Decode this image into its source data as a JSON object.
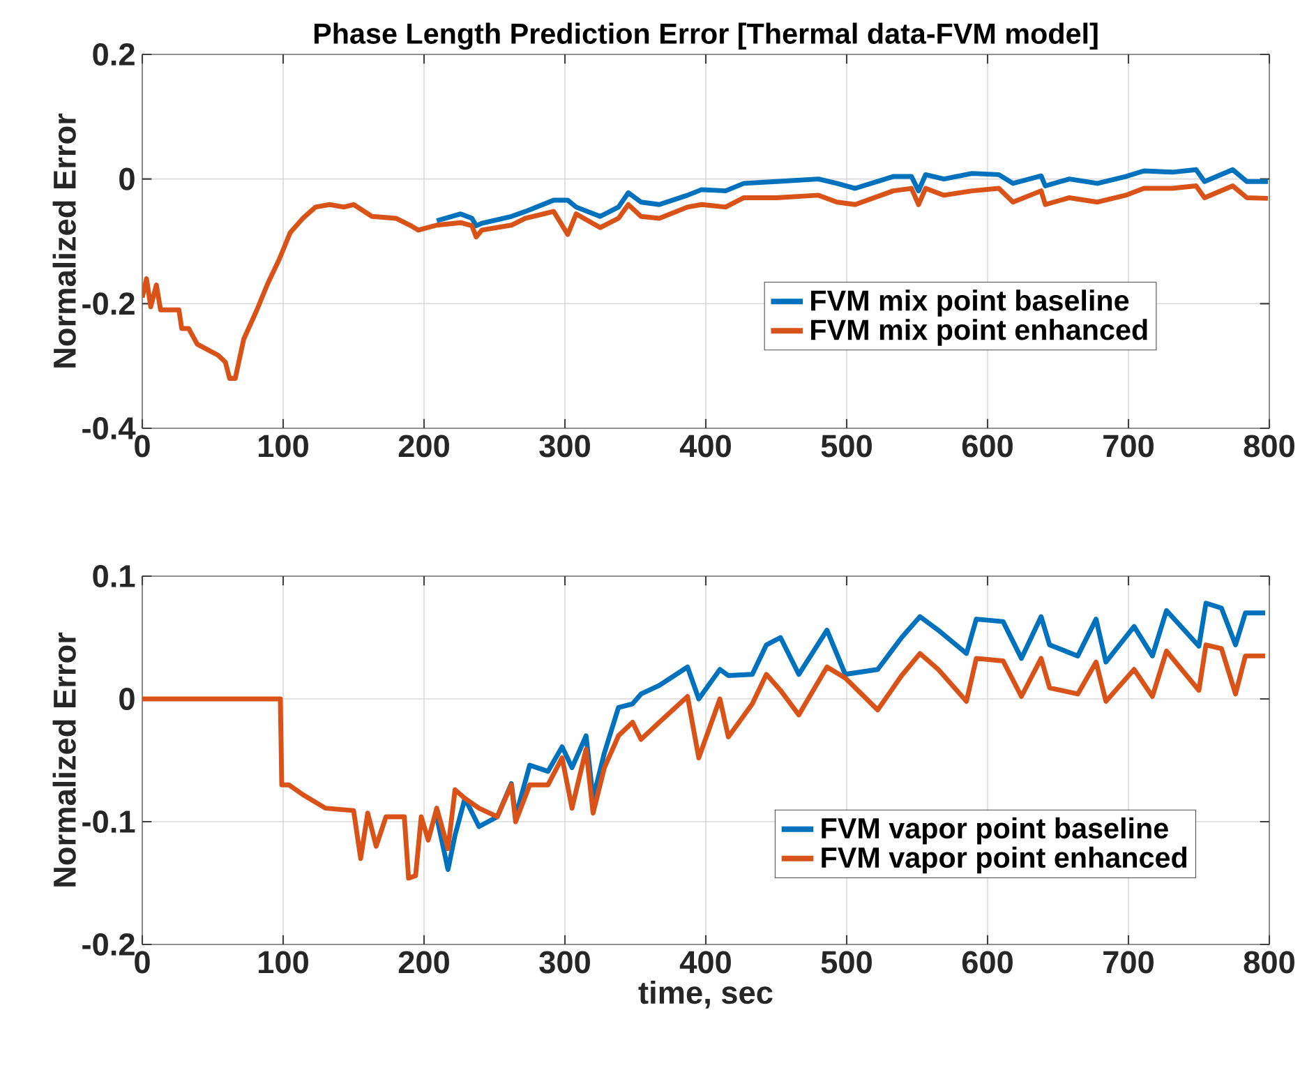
{
  "chart_data": [
    {
      "type": "line",
      "title": "Phase Length Prediction Error [Thermal data-FVM model]",
      "ylabel": "Normalized Error",
      "xlim": [
        0,
        800
      ],
      "ylim": [
        -0.4,
        0.2
      ],
      "xticks": [
        0,
        100,
        200,
        300,
        400,
        500,
        600,
        700,
        800
      ],
      "yticks": [
        -0.4,
        -0.2,
        0,
        0.2
      ],
      "grid": true,
      "legend": "right",
      "series": [
        {
          "name": "FVM mix point baseline",
          "color": "#0072bd",
          "x": [
            209,
            226,
            234,
            237,
            241,
            262,
            272,
            292,
            302,
            308,
            325,
            338,
            345,
            354,
            367,
            387,
            397,
            414,
            427,
            450,
            480,
            493,
            506,
            533,
            546,
            551,
            556,
            569,
            589,
            608,
            618,
            638,
            641,
            658,
            678,
            698,
            711,
            731,
            748,
            754,
            774,
            784,
            799
          ],
          "values": [
            -0.067,
            -0.056,
            -0.063,
            -0.075,
            -0.071,
            -0.06,
            -0.052,
            -0.034,
            -0.034,
            -0.045,
            -0.06,
            -0.045,
            -0.022,
            -0.037,
            -0.041,
            -0.026,
            -0.017,
            -0.019,
            -0.007,
            -0.004,
            0.0,
            -0.007,
            -0.015,
            0.004,
            0.004,
            -0.019,
            0.007,
            0.0,
            0.009,
            0.007,
            -0.007,
            0.005,
            -0.011,
            0.0,
            -0.007,
            0.004,
            0.013,
            0.011,
            0.015,
            -0.004,
            0.015,
            -0.004,
            -0.004
          ]
        },
        {
          "name": "FVM mix point enhanced",
          "color": "#d95319",
          "x": [
            0,
            3,
            6,
            10,
            13,
            26,
            28,
            33,
            39,
            54,
            59,
            62,
            66,
            72,
            81,
            89,
            97,
            105,
            114,
            123,
            133,
            143,
            150,
            163,
            180,
            190,
            196,
            209,
            226,
            234,
            237,
            241,
            262,
            272,
            292,
            302,
            308,
            325,
            338,
            345,
            354,
            367,
            387,
            397,
            414,
            427,
            450,
            480,
            493,
            506,
            533,
            546,
            551,
            556,
            569,
            589,
            608,
            618,
            638,
            641,
            658,
            678,
            698,
            711,
            731,
            748,
            754,
            774,
            784,
            799
          ],
          "values": [
            -0.19,
            -0.16,
            -0.205,
            -0.17,
            -0.21,
            -0.21,
            -0.24,
            -0.24,
            -0.265,
            -0.283,
            -0.294,
            -0.32,
            -0.32,
            -0.257,
            -0.212,
            -0.168,
            -0.13,
            -0.086,
            -0.063,
            -0.045,
            -0.041,
            -0.045,
            -0.041,
            -0.06,
            -0.063,
            -0.074,
            -0.082,
            -0.074,
            -0.07,
            -0.075,
            -0.093,
            -0.082,
            -0.074,
            -0.063,
            -0.052,
            -0.089,
            -0.056,
            -0.078,
            -0.063,
            -0.041,
            -0.06,
            -0.063,
            -0.045,
            -0.041,
            -0.045,
            -0.03,
            -0.03,
            -0.026,
            -0.037,
            -0.041,
            -0.019,
            -0.015,
            -0.041,
            -0.015,
            -0.026,
            -0.019,
            -0.015,
            -0.037,
            -0.019,
            -0.041,
            -0.03,
            -0.037,
            -0.026,
            -0.015,
            -0.015,
            -0.011,
            -0.03,
            -0.011,
            -0.03,
            -0.031
          ]
        }
      ]
    },
    {
      "type": "line",
      "xlabel": "time, sec",
      "ylabel": "Normalized Error",
      "xlim": [
        0,
        800
      ],
      "ylim": [
        -0.2,
        0.1
      ],
      "xticks": [
        0,
        100,
        200,
        300,
        400,
        500,
        600,
        700,
        800
      ],
      "yticks": [
        -0.2,
        -0.1,
        0,
        0.1
      ],
      "grid": true,
      "legend": "bottom right",
      "series": [
        {
          "name": "FVM vapor point baseline",
          "color": "#0072bd",
          "x": [
            209,
            217,
            222,
            229,
            239,
            252,
            262,
            265,
            275,
            288,
            298,
            305,
            315,
            320,
            328,
            338,
            348,
            354,
            367,
            387,
            395,
            410,
            416,
            433,
            443,
            453,
            466,
            486,
            499,
            522,
            539,
            552,
            565,
            585,
            592,
            611,
            624,
            638,
            644,
            664,
            677,
            684,
            704,
            717,
            727,
            750,
            755,
            766,
            776,
            783,
            797
          ],
          "values": [
            -0.096,
            -0.139,
            -0.111,
            -0.081,
            -0.104,
            -0.096,
            -0.069,
            -0.096,
            -0.054,
            -0.059,
            -0.039,
            -0.056,
            -0.03,
            -0.081,
            -0.044,
            -0.007,
            -0.004,
            0.004,
            0.011,
            0.026,
            0.0,
            0.024,
            0.019,
            0.02,
            0.044,
            0.05,
            0.02,
            0.056,
            0.02,
            0.024,
            0.05,
            0.067,
            0.056,
            0.037,
            0.065,
            0.063,
            0.033,
            0.067,
            0.044,
            0.035,
            0.065,
            0.03,
            0.059,
            0.035,
            0.072,
            0.043,
            0.078,
            0.074,
            0.044,
            0.07,
            0.07
          ]
        },
        {
          "name": "FVM vapor point enhanced",
          "color": "#d95319",
          "x": [
            0,
            98,
            99,
            104,
            114,
            130,
            150,
            155,
            160,
            166,
            173,
            186,
            189,
            194,
            198,
            203,
            209,
            217,
            222,
            229,
            239,
            252,
            262,
            265,
            275,
            288,
            298,
            305,
            315,
            320,
            328,
            338,
            348,
            354,
            367,
            387,
            395,
            410,
            416,
            433,
            443,
            453,
            466,
            486,
            499,
            522,
            539,
            552,
            565,
            585,
            592,
            611,
            624,
            638,
            644,
            664,
            677,
            684,
            704,
            717,
            727,
            750,
            755,
            766,
            776,
            783,
            797
          ],
          "values": [
            0,
            0,
            -0.07,
            -0.07,
            -0.078,
            -0.089,
            -0.091,
            -0.13,
            -0.093,
            -0.12,
            -0.096,
            -0.096,
            -0.146,
            -0.144,
            -0.096,
            -0.115,
            -0.089,
            -0.122,
            -0.074,
            -0.081,
            -0.089,
            -0.096,
            -0.07,
            -0.1,
            -0.07,
            -0.07,
            -0.048,
            -0.089,
            -0.041,
            -0.093,
            -0.056,
            -0.03,
            -0.019,
            -0.033,
            -0.019,
            0.002,
            -0.048,
            0.0,
            -0.031,
            -0.004,
            0.02,
            0.007,
            -0.013,
            0.026,
            0.017,
            -0.009,
            0.019,
            0.037,
            0.024,
            -0.002,
            0.033,
            0.031,
            0.002,
            0.033,
            0.009,
            0.004,
            0.03,
            -0.002,
            0.024,
            0.002,
            0.039,
            0.007,
            0.044,
            0.041,
            0.004,
            0.035,
            0.035
          ]
        }
      ]
    }
  ]
}
